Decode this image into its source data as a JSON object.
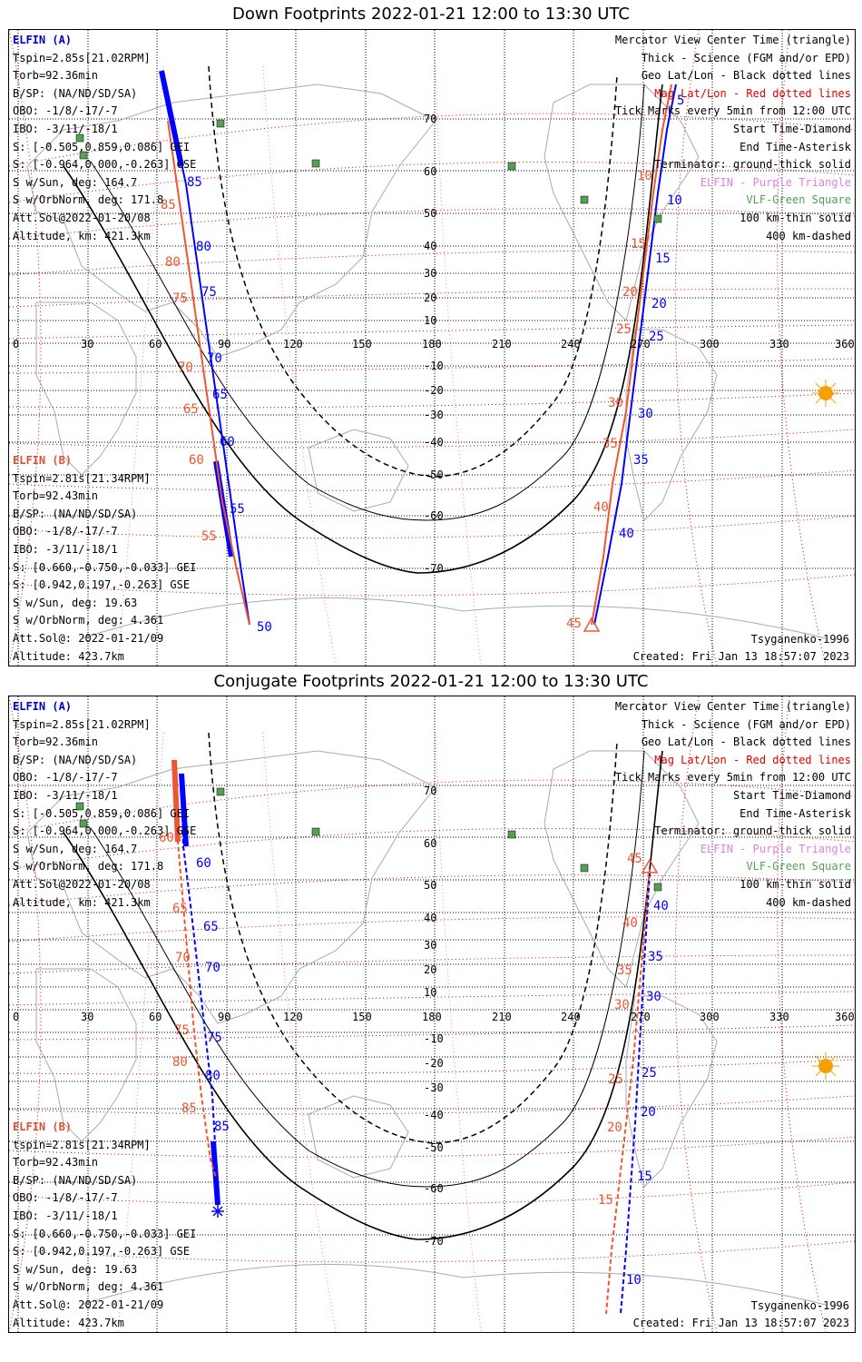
{
  "panels": [
    {
      "title": "Down Footprints 2022-01-21 12:00 to 13:30 UTC",
      "elfin_a": {
        "header": "ELFIN (A)",
        "lines": [
          "Tspin=2.85s[21.02RPM]",
          "Torb=92.36min",
          "B/SP: (NA/ND/SD/SA)",
          "OBO: -1/8/-17/-7",
          "IBO: -3/11/-18/1",
          "S: [-0.505,0.859,0.086] GEI",
          "S: [-0.964,0.000,-0.263] GSE",
          "S w/Sun, deg: 164.7",
          "S w/OrbNorm, deg: 171.8",
          "Att.Sol@2022-01-20/08",
          "Altitude, km: 421.3km"
        ]
      },
      "elfin_b": {
        "header": "ELFIN (B)",
        "lines": [
          "Tspin=2.81s[21.34RPM]",
          "Torb=92.43min",
          "B/SP: (NA/ND/SD/SA)",
          "OBO: -1/8/-17/-7",
          "IBO: -3/11/-18/1",
          "S: [0.660,-0.750,-0.033] GEI",
          "S: [0.942,0.197,-0.263] GSE",
          "S w/Sun, deg: 19.63",
          "S w/OrbNorm, deg: 4.361",
          "Att.Sol@: 2022-01-21/09",
          "Altitude: 423.7km"
        ]
      },
      "legend": [
        "Mercator View Center Time (triangle)",
        "Thick - Science (FGM and/or EPD)",
        "Geo Lat/Lon - Black dotted lines",
        "Mag Lat/Lon - Red dotted lines",
        "Tick Marks every 5min from 12:00 UTC",
        "Start Time-Diamond",
        "End Time-Asterisk",
        "Terminator: ground-thick solid",
        "ELFIN - Purple Triangle",
        "VLF-Green Square",
        "100 km-thin solid",
        "400 km-dashed"
      ],
      "model": "Tsyganenko-1996",
      "created": "Created: Fri Jan 13 18:57:07 2023",
      "lon_labels": [
        "0",
        "30",
        "60",
        "90",
        "120",
        "150",
        "180",
        "210",
        "240",
        "270",
        "300",
        "330",
        "360"
      ],
      "lat_labels": [
        "70",
        "60",
        "50",
        "40",
        "30",
        "20",
        "10",
        "-10",
        "-20",
        "-30",
        "-40",
        "-50",
        "-60",
        "-70"
      ],
      "track_a_labels": [
        "85",
        "80",
        "75",
        "70",
        "65",
        "60",
        "55",
        "50"
      ],
      "track_b_labels": [
        "85",
        "80",
        "75",
        "70",
        "65",
        "60",
        "55"
      ],
      "track_a2_labels": [
        "5",
        "10",
        "15",
        "20",
        "25",
        "30",
        "35",
        "40"
      ],
      "track_b2_labels": [
        "10",
        "15",
        "20",
        "25",
        "30",
        "35",
        "40",
        "45"
      ]
    },
    {
      "title": "Conjugate Footprints 2022-01-21 12:00 to 13:30 UTC",
      "elfin_a": {
        "header": "ELFIN (A)",
        "lines": [
          "Tspin=2.85s[21.02RPM]",
          "Torb=92.36min",
          "B/SP: (NA/ND/SD/SA)",
          "OBO: -1/8/-17/-7",
          "IBO: -3/11/-18/1",
          "S: [-0.505,0.859,0.086] GEI",
          "S: [-0.964,0.000,-0.263] GSE",
          "S w/Sun, deg: 164.7",
          "S w/OrbNorm, deg: 171.8",
          "Att.Sol@2022-01-20/08",
          "Altitude, km: 421.3km"
        ]
      },
      "elfin_b": {
        "header": "ELFIN (B)",
        "lines": [
          "tspin=2.81s[21.34RPM]",
          "Torb=92.43min",
          "B/SP: (NA/ND/SD/SA)",
          "OBO: -1/8/-17/-7",
          "IBO: -3/11/-18/1",
          "S: [0.660,-0.750,-0.033] GEI",
          "S: [0.942,0.197,-0.263] GSE",
          "S w/Sun, deg: 19.63",
          "S w/OrbNorm, deg: 4.361",
          "Att.Sol@: 2022-01-21/09",
          "Altitude: 423.7km"
        ]
      },
      "legend": [
        "Mercator View Center Time (triangle)",
        "Thick - Science (FGM and/or EPD)",
        "Geo Lat/Lon - Black dotted lines",
        "Mag Lat/Lon - Red dotted lines",
        "Tick Marks every 5min from 12:00 UTC",
        "Start Time-Diamond",
        "End Time-Asterisk",
        "Terminator: ground-thick solid",
        "ELFIN - Purple Triangle",
        "VLF-Green Square",
        "100 km-thin solid",
        "400 km-dashed"
      ],
      "model": "Tsyganenko-1996",
      "created": "Created: Fri Jan 13 18:57:07 2023",
      "lon_labels": [
        "0",
        "30",
        "60",
        "90",
        "120",
        "150",
        "180",
        "210",
        "240",
        "270",
        "300",
        "330",
        "360"
      ],
      "lat_labels": [
        "70",
        "60",
        "50",
        "40",
        "30",
        "20",
        "10",
        "-10",
        "-20",
        "-30",
        "-40",
        "-50",
        "-60",
        "-70"
      ],
      "track_a_labels": [
        "60",
        "65",
        "70",
        "75",
        "80",
        "85"
      ],
      "track_b_labels": [
        "60",
        "65",
        "70",
        "75",
        "80",
        "85"
      ],
      "track_a2_labels": [
        "40",
        "35",
        "30",
        "25",
        "20",
        "15",
        "10"
      ],
      "track_b2_labels": [
        "45",
        "40",
        "35",
        "30",
        "25",
        "20",
        "15"
      ]
    }
  ],
  "colors": {
    "elfin_a": "#0000ff",
    "elfin_b": "#ee5533",
    "mag_grid": "#e00000",
    "geo_grid": "#000000",
    "vlf": "#55a055",
    "elfin_marker": "#e080e0",
    "sun": "#f5a000"
  }
}
